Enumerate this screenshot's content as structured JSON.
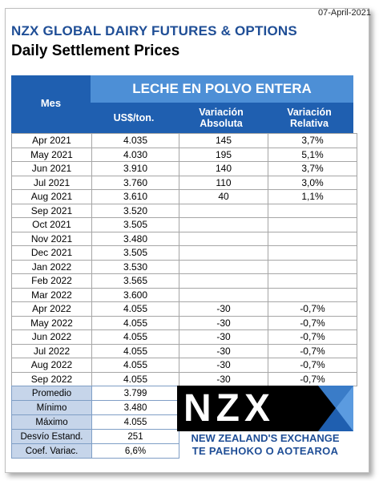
{
  "date": "07-April-2021",
  "brand_title": "NZX GLOBAL DAIRY FUTURES & OPTIONS",
  "sub_title": "Daily Settlement Prices",
  "header": {
    "mes": "Mes",
    "product": "LECHE EN POLVO ENTERA",
    "usd": "US$/ton.",
    "var_abs_1": "Variación",
    "var_abs_2": "Absoluta",
    "var_rel_1": "Variación",
    "var_rel_2": "Relativa"
  },
  "rows": [
    {
      "mes": "Apr 2021",
      "usd": "4.035",
      "abs": "145",
      "rel": "3,7%"
    },
    {
      "mes": "May 2021",
      "usd": "4.030",
      "abs": "195",
      "rel": "5,1%"
    },
    {
      "mes": "Jun 2021",
      "usd": "3.910",
      "abs": "140",
      "rel": "3,7%"
    },
    {
      "mes": "Jul 2021",
      "usd": "3.760",
      "abs": "110",
      "rel": "3,0%"
    },
    {
      "mes": "Aug 2021",
      "usd": "3.610",
      "abs": "40",
      "rel": "1,1%"
    },
    {
      "mes": "Sep 2021",
      "usd": "3.520",
      "abs": "",
      "rel": ""
    },
    {
      "mes": "Oct 2021",
      "usd": "3.505",
      "abs": "",
      "rel": ""
    },
    {
      "mes": "Nov 2021",
      "usd": "3.480",
      "abs": "",
      "rel": ""
    },
    {
      "mes": "Dec 2021",
      "usd": "3.505",
      "abs": "",
      "rel": ""
    },
    {
      "mes": "Jan 2022",
      "usd": "3.530",
      "abs": "",
      "rel": ""
    },
    {
      "mes": "Feb 2022",
      "usd": "3.565",
      "abs": "",
      "rel": ""
    },
    {
      "mes": "Mar 2022",
      "usd": "3.600",
      "abs": "",
      "rel": ""
    },
    {
      "mes": "Apr 2022",
      "usd": "4.055",
      "abs": "-30",
      "rel": "-0,7%"
    },
    {
      "mes": "May 2022",
      "usd": "4.055",
      "abs": "-30",
      "rel": "-0,7%"
    },
    {
      "mes": "Jun 2022",
      "usd": "4.055",
      "abs": "-30",
      "rel": "-0,7%"
    },
    {
      "mes": "Jul 2022",
      "usd": "4.055",
      "abs": "-30",
      "rel": "-0,7%"
    },
    {
      "mes": "Aug 2022",
      "usd": "4.055",
      "abs": "-30",
      "rel": "-0,7%"
    },
    {
      "mes": "Sep 2022",
      "usd": "4.055",
      "abs": "-30",
      "rel": "-0,7%"
    }
  ],
  "stats": [
    {
      "label": "Promedio",
      "value": "3.799"
    },
    {
      "label": "Mínimo",
      "value": "3.480"
    },
    {
      "label": "Máximo",
      "value": "4.055"
    },
    {
      "label": "Desvío Estand.",
      "value": "251"
    },
    {
      "label": "Coef. Variac.",
      "value": "6,6%"
    }
  ],
  "logo": {
    "text": "NZX",
    "line1": "NEW ZEALAND'S EXCHANGE",
    "line2": "TE PAEHOKO O AOTEAROA"
  },
  "colors": {
    "brand_blue": "#1f4e96",
    "header_dark": "#1f5fb0",
    "header_light": "#4d8fd6",
    "stats_label_bg": "#c6d5ea"
  }
}
